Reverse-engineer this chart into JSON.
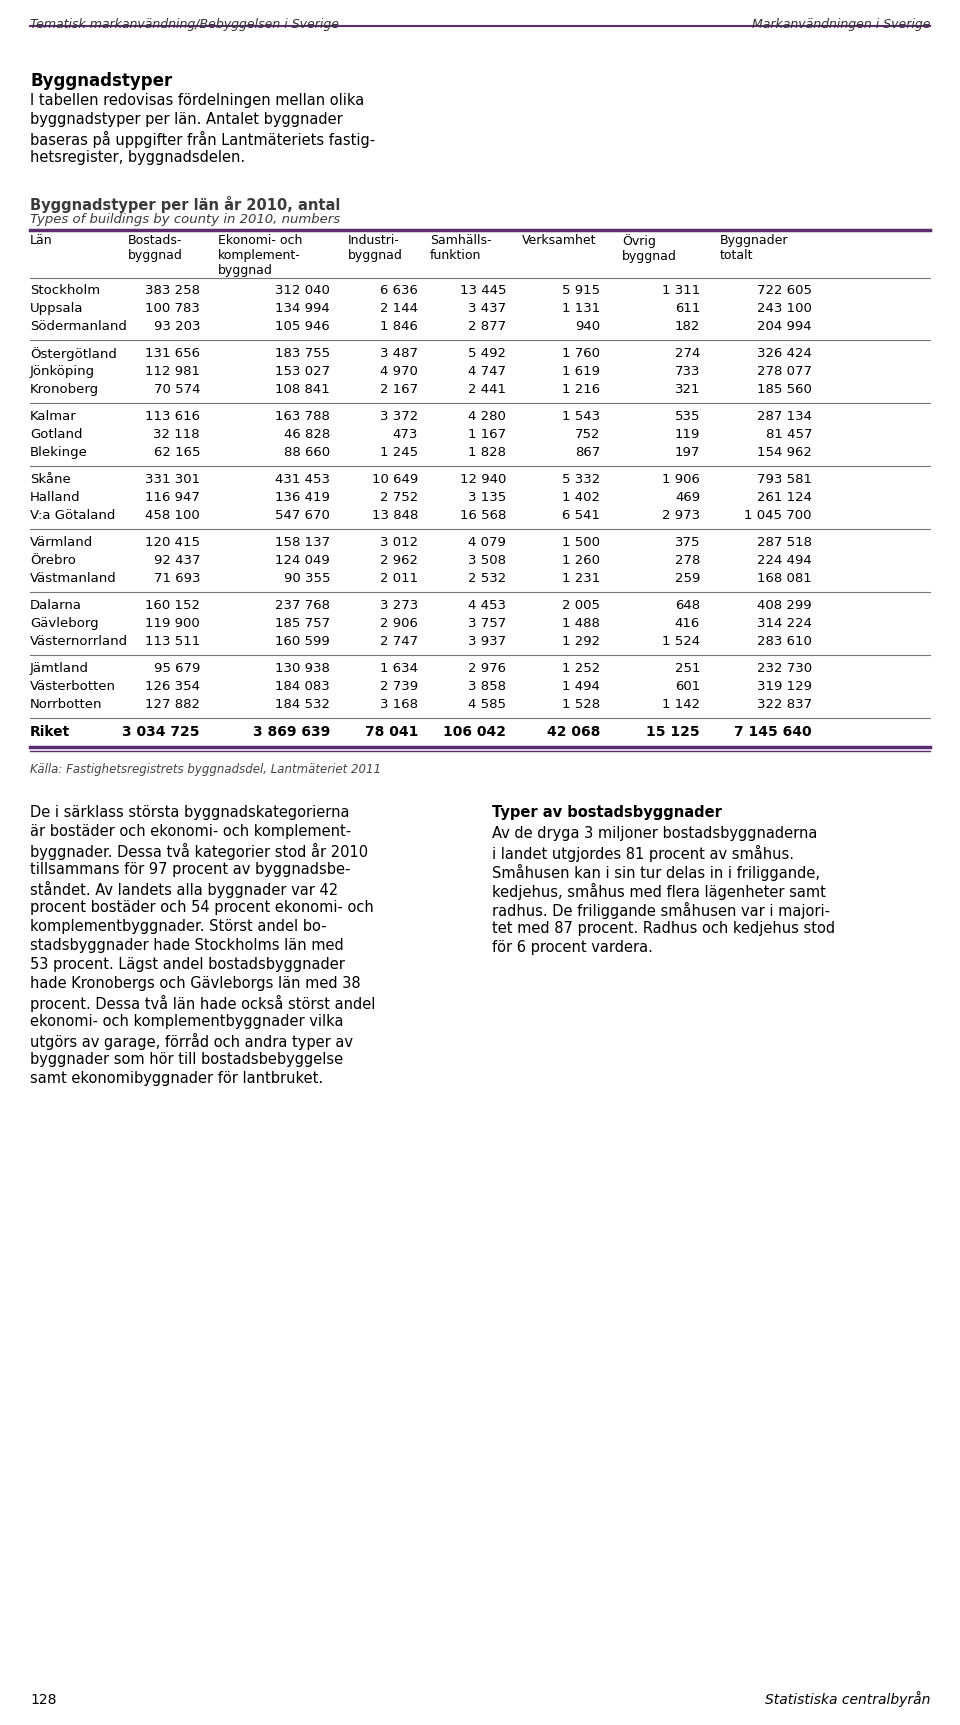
{
  "header_left": "Tematisk markanvändning/Bebyggelsen i Sverige",
  "header_right": "Markanvändningen i Sverige",
  "section_title": "Byggnadstyper",
  "body_lines": [
    "I tabellen redovisas fördelningen mellan olika",
    "byggnadstyper per län. Antalet byggnader",
    "baseras på uppgifter från Lantmäteriets fastig-",
    "hetsregister, byggnadsdelen."
  ],
  "table_title_sv": "Byggnadstyper per län år 2010, antal",
  "table_title_en": "Types of buildings by county in 2010, numbers",
  "col_headers": [
    "Län",
    "Bostads-\nbyggnad",
    "Ekonomi- och\nkomplement-\nbyggnad",
    "Industri-\nbyggnad",
    "Samhälls-\nfunktion",
    "Verksamhet",
    "Övrig\nbyggnad",
    "Byggnader\ntotalt"
  ],
  "groups": [
    {
      "counties": [
        "Stockholm",
        "Uppsala",
        "Södermanland"
      ],
      "data": [
        [
          383258,
          312040,
          6636,
          13445,
          5915,
          1311,
          722605
        ],
        [
          100783,
          134994,
          2144,
          3437,
          1131,
          611,
          243100
        ],
        [
          93203,
          105946,
          1846,
          2877,
          940,
          182,
          204994
        ]
      ]
    },
    {
      "counties": [
        "Östergötland",
        "Jönköping",
        "Kronoberg"
      ],
      "data": [
        [
          131656,
          183755,
          3487,
          5492,
          1760,
          274,
          326424
        ],
        [
          112981,
          153027,
          4970,
          4747,
          1619,
          733,
          278077
        ],
        [
          70574,
          108841,
          2167,
          2441,
          1216,
          321,
          185560
        ]
      ]
    },
    {
      "counties": [
        "Kalmar",
        "Gotland",
        "Blekinge"
      ],
      "data": [
        [
          113616,
          163788,
          3372,
          4280,
          1543,
          535,
          287134
        ],
        [
          32118,
          46828,
          473,
          1167,
          752,
          119,
          81457
        ],
        [
          62165,
          88660,
          1245,
          1828,
          867,
          197,
          154962
        ]
      ]
    },
    {
      "counties": [
        "Skåne",
        "Halland",
        "V:a Götaland"
      ],
      "data": [
        [
          331301,
          431453,
          10649,
          12940,
          5332,
          1906,
          793581
        ],
        [
          116947,
          136419,
          2752,
          3135,
          1402,
          469,
          261124
        ],
        [
          458100,
          547670,
          13848,
          16568,
          6541,
          2973,
          1045700
        ]
      ]
    },
    {
      "counties": [
        "Värmland",
        "Örebro",
        "Västmanland"
      ],
      "data": [
        [
          120415,
          158137,
          3012,
          4079,
          1500,
          375,
          287518
        ],
        [
          92437,
          124049,
          2962,
          3508,
          1260,
          278,
          224494
        ],
        [
          71693,
          90355,
          2011,
          2532,
          1231,
          259,
          168081
        ]
      ]
    },
    {
      "counties": [
        "Dalarna",
        "Gävleborg",
        "Västernorrland"
      ],
      "data": [
        [
          160152,
          237768,
          3273,
          4453,
          2005,
          648,
          408299
        ],
        [
          119900,
          185757,
          2906,
          3757,
          1488,
          416,
          314224
        ],
        [
          113511,
          160599,
          2747,
          3937,
          1292,
          1524,
          283610
        ]
      ]
    },
    {
      "counties": [
        "Jämtland",
        "Västerbotten",
        "Norrbotten"
      ],
      "data": [
        [
          95679,
          130938,
          1634,
          2976,
          1252,
          251,
          232730
        ],
        [
          126354,
          184083,
          2739,
          3858,
          1494,
          601,
          319129
        ],
        [
          127882,
          184532,
          3168,
          4585,
          1528,
          1142,
          322837
        ]
      ]
    }
  ],
  "total_row": {
    "label": "Riket",
    "data": [
      3034725,
      3869639,
      78041,
      106042,
      42068,
      15125,
      7145640
    ]
  },
  "source": "Källa: Fastighetsregistrets byggnadsdel, Lantmäteriet 2011",
  "left_col_lines": [
    "De i särklass största byggnadskategorierna",
    "är bostäder och ekonomi- och komplement-",
    "byggnader. Dessa två kategorier stod år 2010",
    "tillsammans för 97 procent av byggnadsbe-",
    "ståndet. Av landets alla byggnader var 42",
    "procent bostäder och 54 procent ekonomi- och",
    "komplementbyggnader. Störst andel bo-",
    "stadsbyggnader hade Stockholms län med",
    "53 procent. Lägst andel bostadsbyggnader",
    "hade Kronobergs och Gävleborgs län med 38",
    "procent. Dessa två län hade också störst andel",
    "ekonomi- och komplementbyggnader vilka",
    "utgörs av garage, förråd och andra typer av",
    "byggnader som hör till bostadsbebyggelse",
    "samt ekonomibyggnader för lantbruket."
  ],
  "right_col_title": "Typer av bostadsbyggnader",
  "right_col_lines": [
    "Av de dryga 3 miljoner bostadsbyggnaderna",
    "i landet utgjordes 81 procent av småhus.",
    "Småhusen kan i sin tur delas in i friliggande,",
    "kedjehus, småhus med flera lägenheter samt",
    "radhus. De friliggande småhusen var i majori-",
    "tet med 87 procent. Radhus och kedjehus stod",
    "för 6 procent vardera."
  ],
  "page_left": "128",
  "page_right": "Statistiska centralbyrån",
  "purple": "#5B2C6F",
  "bg": "#ffffff",
  "dark_gray": "#333333",
  "mid_gray": "#666666"
}
